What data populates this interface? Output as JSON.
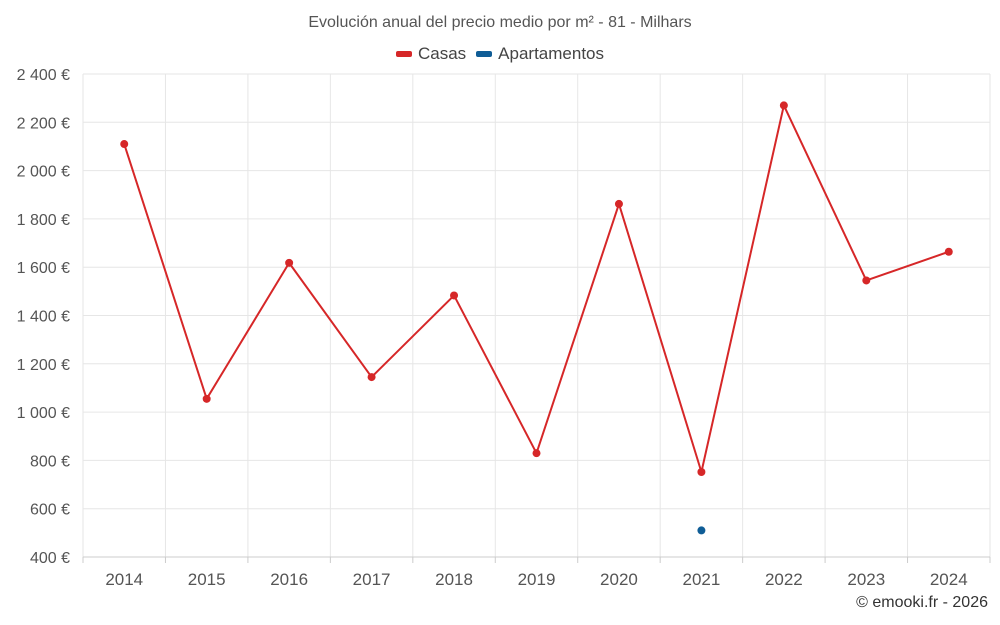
{
  "chart_data": {
    "type": "line",
    "title": "Evolución anual del precio medio por m² - 81 - Milhars",
    "categories": [
      "2014",
      "2015",
      "2016",
      "2017",
      "2018",
      "2019",
      "2020",
      "2021",
      "2022",
      "2023",
      "2024"
    ],
    "series": [
      {
        "name": "Casas",
        "color": "#d62728",
        "values": [
          2110,
          1055,
          1618,
          1145,
          1483,
          830,
          1862,
          752,
          2270,
          1545,
          1664
        ]
      },
      {
        "name": "Apartamentos",
        "color": "#0f5d96",
        "values": [
          null,
          null,
          null,
          null,
          null,
          null,
          null,
          510,
          null,
          null,
          null
        ]
      }
    ],
    "ylim": [
      400,
      2400
    ],
    "yticks": [
      400,
      600,
      800,
      1000,
      1200,
      1400,
      1600,
      1800,
      2000,
      2200,
      2400
    ],
    "ytick_labels": [
      "400 €",
      "600 €",
      "800 €",
      "1 000 €",
      "1 200 €",
      "1 400 €",
      "1 600 €",
      "1 800 €",
      "2 000 €",
      "2 200 €",
      "2 400 €"
    ],
    "xlabel": "",
    "ylabel": "",
    "grid": true,
    "legend": "top-center"
  },
  "credit": "© emooki.fr - 2026"
}
